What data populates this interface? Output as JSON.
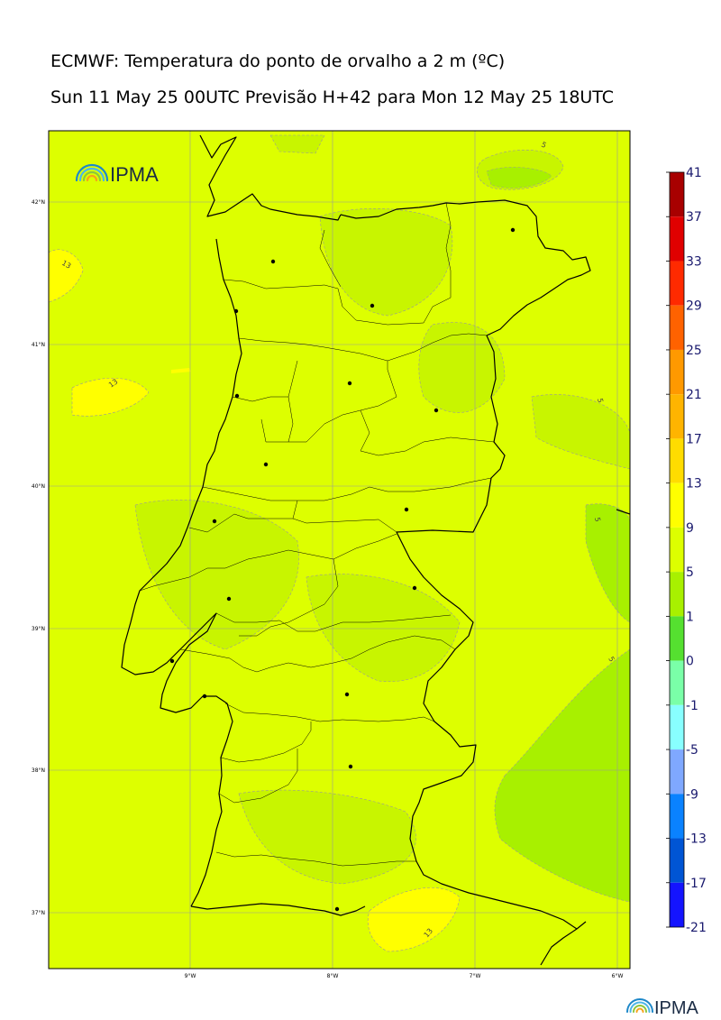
{
  "header": {
    "title": "ECMWF: Temperatura do ponto de orvalho a 2 m (ºC)",
    "subtitle": "Sun 11 May 25 00UTC Previsão H+42 para Mon 12 May 25 18UTC"
  },
  "branding": {
    "logo_text": "IPMA",
    "footer_logo_text": "IPMA"
  },
  "axes": {
    "lon_labels": [
      "9°W",
      "8°W",
      "7°W",
      "6°W"
    ],
    "lat_labels": [
      "42°N",
      "41°N",
      "40°N",
      "39°N",
      "38°N",
      "37°N"
    ]
  },
  "contour_labels": [
    "13",
    "13",
    "13",
    "5",
    "5",
    "5",
    "5"
  ],
  "legend": {
    "labels": [
      "41",
      "37",
      "33",
      "29",
      "25",
      "21",
      "17",
      "13",
      "9",
      "5",
      "1",
      "0",
      "-1",
      "-5",
      "-9",
      "-13",
      "-17",
      "-21"
    ],
    "colors": [
      "#a80000",
      "#e00000",
      "#ff2a00",
      "#ff6200",
      "#ff9900",
      "#ffb400",
      "#ffdc00",
      "#ffff00",
      "#ddff00",
      "#a8f000",
      "#55e030",
      "#7affa8",
      "#88ffff",
      "#7fa8ff",
      "#0a82ff",
      "#0055d4",
      "#1414ff",
      "#8a22ff"
    ]
  }
}
